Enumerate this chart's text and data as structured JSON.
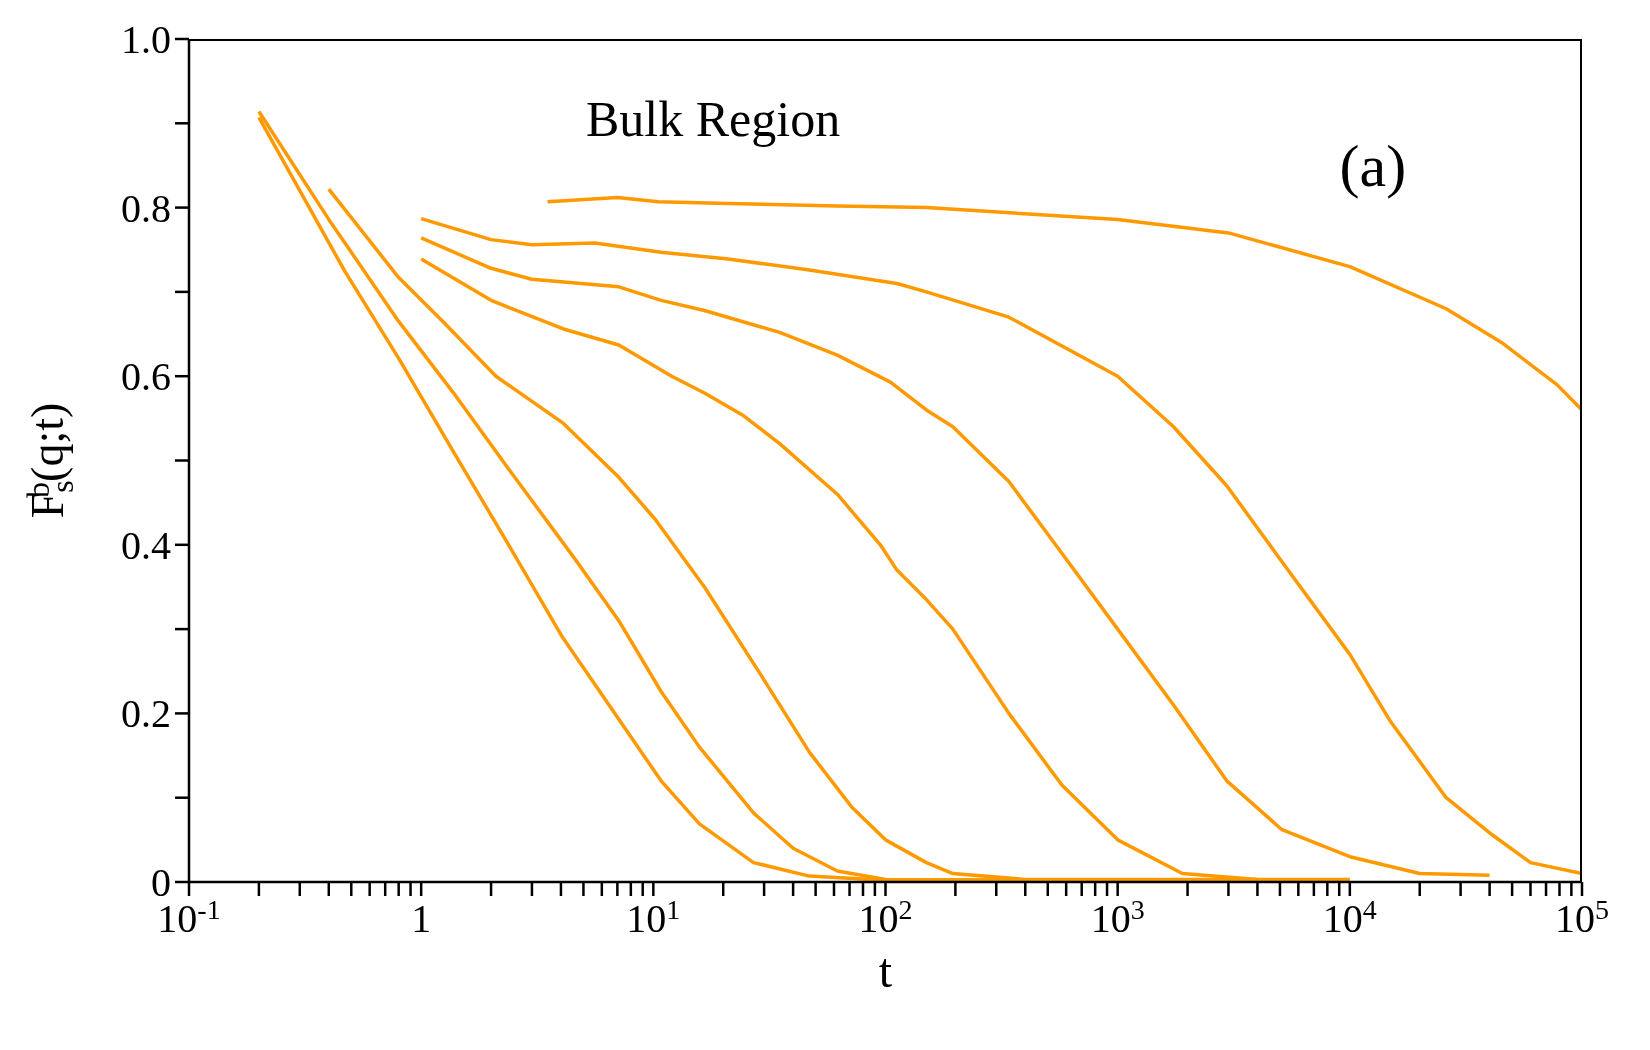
{
  "chart_data": {
    "type": "line",
    "xlabel": "t",
    "ylabel": "F$_{s}$$^{b}$(q;t)",
    "log": "x",
    "xlim": [
      0.1,
      100000
    ],
    "ylim": [
      0,
      1
    ],
    "xticks": [
      {
        "value": 0.1,
        "label": "10$^{-1}$"
      },
      {
        "value": 0.2,
        "label": null
      },
      {
        "value": 0.3,
        "label": null
      },
      {
        "value": 0.4,
        "label": null
      },
      {
        "value": 0.5,
        "label": null
      },
      {
        "value": 0.6,
        "label": null
      },
      {
        "value": 0.7,
        "label": null
      },
      {
        "value": 0.8,
        "label": null
      },
      {
        "value": 0.9,
        "label": null
      },
      {
        "value": 1,
        "label": "1"
      },
      {
        "value": 2,
        "label": null
      },
      {
        "value": 3,
        "label": null
      },
      {
        "value": 4,
        "label": null
      },
      {
        "value": 5,
        "label": null
      },
      {
        "value": 6,
        "label": null
      },
      {
        "value": 7,
        "label": null
      },
      {
        "value": 8,
        "label": null
      },
      {
        "value": 9,
        "label": null
      },
      {
        "value": 10,
        "label": "10$^{1}$"
      },
      {
        "value": 20,
        "label": null
      },
      {
        "value": 30,
        "label": null
      },
      {
        "value": 40,
        "label": null
      },
      {
        "value": 50,
        "label": null
      },
      {
        "value": 60,
        "label": null
      },
      {
        "value": 70,
        "label": null
      },
      {
        "value": 80,
        "label": null
      },
      {
        "value": 90,
        "label": null
      },
      {
        "value": 100,
        "label": "10$^{2}$"
      },
      {
        "value": 200,
        "label": null
      },
      {
        "value": 300,
        "label": null
      },
      {
        "value": 400,
        "label": null
      },
      {
        "value": 500,
        "label": null
      },
      {
        "value": 600,
        "label": null
      },
      {
        "value": 700,
        "label": null
      },
      {
        "value": 800,
        "label": null
      },
      {
        "value": 900,
        "label": null
      },
      {
        "value": 1000,
        "label": "10$^{3}$"
      },
      {
        "value": 2000,
        "label": null
      },
      {
        "value": 3000,
        "label": null
      },
      {
        "value": 4000,
        "label": null
      },
      {
        "value": 5000,
        "label": null
      },
      {
        "value": 6000,
        "label": null
      },
      {
        "value": 7000,
        "label": null
      },
      {
        "value": 8000,
        "label": null
      },
      {
        "value": 9000,
        "label": null
      },
      {
        "value": 10000,
        "label": "10$^{4}$"
      },
      {
        "value": 20000,
        "label": null
      },
      {
        "value": 30000,
        "label": null
      },
      {
        "value": 40000,
        "label": null
      },
      {
        "value": 50000,
        "label": null
      },
      {
        "value": 60000,
        "label": null
      },
      {
        "value": 70000,
        "label": null
      },
      {
        "value": 80000,
        "label": null
      },
      {
        "value": 90000,
        "label": null
      },
      {
        "value": 100000,
        "label": "10$^{5}$"
      }
    ],
    "yticks": [
      0,
      {
        "value": 0.1,
        "label": null
      },
      0.2,
      {
        "value": 0.3,
        "label": null
      },
      0.4,
      {
        "value": 0.5,
        "label": null
      },
      0.6,
      {
        "value": 0.7,
        "label": null
      },
      0.8,
      {
        "value": 0.9,
        "label": null
      },
      {
        "value": 1,
        "label": "1.0"
      }
    ],
    "grid": false,
    "marker": "none",
    "line_style": "solid",
    "annotations": [
      "Bulk Region",
      "(a)"
    ],
    "series": [
      {
        "color": "#ff9900",
        "x": [
          0.2,
          0.47,
          0.805,
          1.38,
          2.38,
          4.07,
          7.1,
          10.8,
          15.8,
          27,
          47,
          100,
          500
        ],
        "values": [
          0.907,
          0.724,
          0.62,
          0.51,
          0.4,
          0.29,
          0.193,
          0.12,
          0.069,
          0.023,
          0.007,
          0.002,
          0.002
        ]
      },
      {
        "color": "#ff9900",
        "x": [
          0.2,
          0.4,
          0.8,
          1.38,
          2.38,
          4.6,
          7.1,
          10.8,
          15.8,
          27,
          40,
          62,
          100,
          1000
        ],
        "values": [
          0.914,
          0.786,
          0.665,
          0.58,
          0.49,
          0.383,
          0.31,
          0.226,
          0.16,
          0.082,
          0.04,
          0.013,
          0.003,
          0.002
        ]
      },
      {
        "color": "#ff9900",
        "x": [
          0.4,
          0.8,
          1.24,
          2.1,
          4.1,
          7.1,
          10.2,
          16.6,
          29,
          47,
          72,
          100,
          150,
          195,
          400,
          4000
        ],
        "values": [
          0.822,
          0.717,
          0.665,
          0.6,
          0.544,
          0.48,
          0.43,
          0.35,
          0.246,
          0.154,
          0.088,
          0.05,
          0.023,
          0.01,
          0.003,
          0.003
        ]
      },
      {
        "color": "#ff9900",
        "x": [
          1,
          2,
          4.1,
          7.1,
          12,
          16.6,
          24.5,
          35,
          62,
          95,
          112,
          150,
          195,
          340,
          575,
          1000,
          1900,
          4000,
          10000
        ],
        "values": [
          0.739,
          0.69,
          0.656,
          0.637,
          0.6,
          0.58,
          0.553,
          0.52,
          0.46,
          0.4,
          0.37,
          0.335,
          0.3,
          0.2,
          0.115,
          0.05,
          0.01,
          0.003,
          0.003
        ]
      },
      {
        "color": "#ff9900",
        "x": [
          1,
          2,
          3,
          7.1,
          10.8,
          16.6,
          35,
          62,
          105,
          150,
          195,
          340,
          575,
          1000,
          1740,
          2950,
          5100,
          10000,
          20000,
          40000
        ],
        "values": [
          0.764,
          0.728,
          0.715,
          0.706,
          0.69,
          0.678,
          0.652,
          0.625,
          0.593,
          0.56,
          0.54,
          0.475,
          0.39,
          0.3,
          0.21,
          0.12,
          0.062,
          0.03,
          0.01,
          0.008
        ]
      },
      {
        "color": "#ff9900",
        "x": [
          1,
          2,
          3,
          5.6,
          10.8,
          21,
          47,
          112,
          150,
          340,
          1000,
          1740,
          2950,
          5100,
          10000,
          15000,
          26000,
          41000,
          60000,
          100000
        ],
        "values": [
          0.787,
          0.762,
          0.756,
          0.758,
          0.747,
          0.739,
          0.726,
          0.71,
          0.7,
          0.67,
          0.6,
          0.54,
          0.47,
          0.38,
          0.27,
          0.19,
          0.1,
          0.056,
          0.023,
          0.01
        ]
      },
      {
        "color": "#ff9900",
        "x": [
          3.5,
          7,
          10.5,
          21,
          62,
          150,
          1000,
          3000,
          10000,
          26000,
          45000,
          78000,
          100000
        ],
        "values": [
          0.807,
          0.812,
          0.807,
          0.805,
          0.802,
          0.8,
          0.786,
          0.77,
          0.73,
          0.68,
          0.64,
          0.59,
          0.56
        ]
      }
    ]
  }
}
